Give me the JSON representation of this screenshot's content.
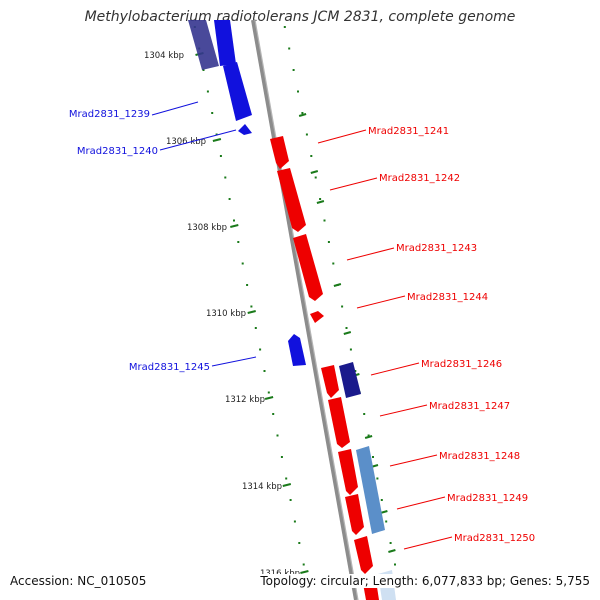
{
  "title": "Methylobacterium radiotolerans JCM 2831, complete genome",
  "accession": "Accession: NC_010505",
  "topology_info": "Topology: circular; Length: 6,077,833 bp; Genes: 5,755",
  "colors": {
    "forward": "#ee0000",
    "reverse": "#1111dd",
    "reverse_dark": "#1a1a8c",
    "reverse_light": "#5b8fc9",
    "tick": "#1a7a1a",
    "backbone": "#8c8c8c"
  },
  "ticks": [
    {
      "label": "1304 kbp",
      "position_kbp": 1304
    },
    {
      "label": "1306 kbp",
      "position_kbp": 1306
    },
    {
      "label": "1308 kbp",
      "position_kbp": 1308
    },
    {
      "label": "1310 kbp",
      "position_kbp": 1310
    },
    {
      "label": "1312 kbp",
      "position_kbp": 1312
    },
    {
      "label": "1314 kbp",
      "position_kbp": 1314
    },
    {
      "label": "1316 kbp",
      "position_kbp": 1316
    }
  ],
  "genes_reverse": [
    {
      "label": "",
      "strand": "reverse",
      "shade": "dark"
    },
    {
      "label": "Mrad2831_1239",
      "strand": "reverse",
      "shade": "normal"
    },
    {
      "label": "Mrad2831_1240",
      "strand": "reverse",
      "shade": "normal"
    },
    {
      "label": "Mrad2831_1245",
      "strand": "reverse",
      "shade": "normal"
    }
  ],
  "genes_forward": [
    {
      "label": "Mrad2831_1241",
      "strand": "forward"
    },
    {
      "label": "Mrad2831_1242",
      "strand": "forward"
    },
    {
      "label": "Mrad2831_1243",
      "strand": "forward"
    },
    {
      "label": "Mrad2831_1244",
      "strand": "forward"
    },
    {
      "label": "Mrad2831_1246",
      "strand": "forward"
    },
    {
      "label": "Mrad2831_1247",
      "strand": "forward"
    },
    {
      "label": "Mrad2831_1248",
      "strand": "forward"
    },
    {
      "label": "Mrad2831_1249",
      "strand": "forward"
    },
    {
      "label": "Mrad2831_1250",
      "strand": "forward"
    },
    {
      "label": "",
      "strand": "forward"
    }
  ],
  "genes_outer": [
    {
      "label": "",
      "strand": "reverse",
      "shade": "dark"
    },
    {
      "label": "",
      "strand": "reverse",
      "shade": "light"
    },
    {
      "label": "",
      "strand": "reverse",
      "shade": "pale"
    }
  ]
}
